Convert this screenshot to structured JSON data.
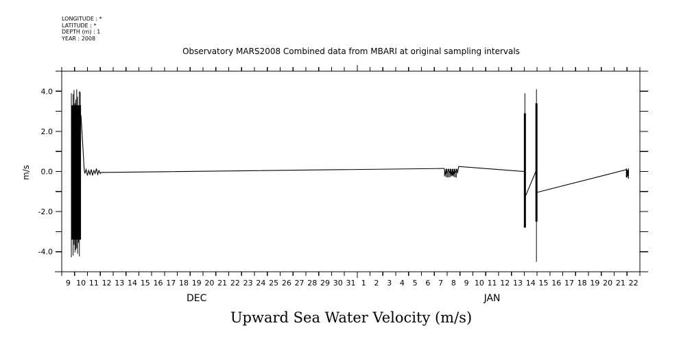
{
  "header": {
    "lines": [
      "LONGITUDE : *",
      "LATITUDE : *",
      "DEPTH (m) : 1",
      "YEAR : 2008"
    ]
  },
  "chart_data": {
    "type": "line",
    "title": "Observatory MARS2008 Combined data from MBARI at original sampling intervals",
    "xlabel": "Upward Sea Water Velocity (m/s)",
    "ylabel": "m/s",
    "ylim": [
      -5,
      5
    ],
    "yticks": [
      4.0,
      2.0,
      0.0,
      -2.0,
      -4.0
    ],
    "ytick_labels": [
      "4.0",
      "2.0",
      "0.0",
      "-2.0",
      "-4.0"
    ],
    "xlim_days": [
      0,
      45
    ],
    "x_unit": "days since Dec 9",
    "xtick_labels": [
      "9",
      "10",
      "11",
      "12",
      "13",
      "14",
      "15",
      "16",
      "17",
      "18",
      "19",
      "20",
      "21",
      "22",
      "23",
      "24",
      "25",
      "26",
      "27",
      "28",
      "29",
      "30",
      "31",
      "1",
      "2",
      "3",
      "4",
      "5",
      "6",
      "7",
      "8",
      "9",
      "10",
      "11",
      "12",
      "13",
      "14",
      "15",
      "16",
      "17",
      "18",
      "19",
      "20",
      "21",
      "22"
    ],
    "month_labels": [
      {
        "label": "DEC",
        "day": 10.5
      },
      {
        "label": "JAN",
        "day": 33.5
      }
    ],
    "grid": false,
    "series": [
      {
        "name": "Upward Sea Water Velocity",
        "segments": [
          {
            "kind": "burst",
            "x0": 0.75,
            "x1": 1.5,
            "ymin": -4.3,
            "ymax": 4.1
          },
          {
            "kind": "line",
            "points": [
              [
                1.5,
                2.8
              ],
              [
                1.75,
                0.1
              ],
              [
                1.8,
                -0.1
              ],
              [
                1.9,
                0.1
              ],
              [
                2.0,
                -0.2
              ],
              [
                2.1,
                0.05
              ],
              [
                2.2,
                -0.15
              ],
              [
                2.3,
                0.1
              ],
              [
                2.4,
                -0.2
              ],
              [
                2.5,
                0.05
              ],
              [
                2.6,
                -0.1
              ],
              [
                2.7,
                0.15
              ],
              [
                2.8,
                -0.15
              ],
              [
                2.9,
                0.05
              ],
              [
                3.0,
                -0.1
              ],
              [
                3.05,
                -0.05
              ],
              [
                29.8,
                0.15
              ]
            ]
          },
          {
            "kind": "noise",
            "x0": 29.8,
            "x1": 30.8,
            "ymin": -0.3,
            "ymax": 0.15
          },
          {
            "kind": "line",
            "points": [
              [
                30.8,
                -0.1
              ],
              [
                30.9,
                0.25
              ],
              [
                36.0,
                0.0
              ]
            ]
          },
          {
            "kind": "spike",
            "x": 36.05,
            "ymin": -2.8,
            "ymax": 3.9,
            "dense_min": -2.8,
            "dense_max": 2.9
          },
          {
            "kind": "line",
            "points": [
              [
                36.05,
                -1.3
              ],
              [
                36.9,
                0.0
              ]
            ]
          },
          {
            "kind": "spike",
            "x": 36.95,
            "ymin": -4.5,
            "ymax": 4.1,
            "dense_min": -2.5,
            "dense_max": 3.4
          },
          {
            "kind": "line",
            "points": [
              [
                36.95,
                -1.05
              ],
              [
                44.0,
                0.1
              ]
            ]
          },
          {
            "kind": "noise",
            "x0": 43.95,
            "x1": 44.15,
            "ymin": -0.4,
            "ymax": 0.15
          }
        ]
      }
    ]
  }
}
